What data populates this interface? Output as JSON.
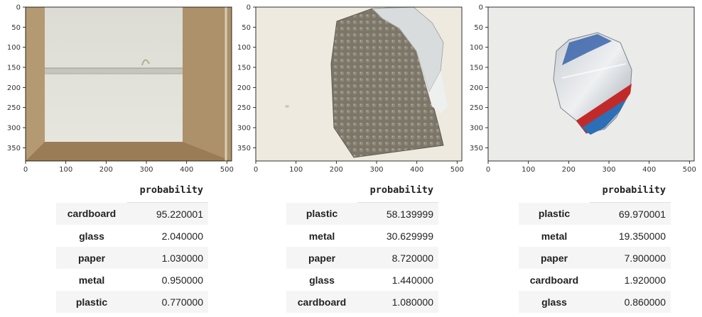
{
  "x_ticks": [
    "0",
    "100",
    "200",
    "300",
    "400",
    "500"
  ],
  "y_ticks": [
    "0",
    "50",
    "100",
    "150",
    "200",
    "250",
    "300",
    "350"
  ],
  "table_header": "probability",
  "panels": [
    {
      "image": "cardboard box interior photo",
      "rows": [
        {
          "label": "cardboard",
          "value": "95.220001"
        },
        {
          "label": "glass",
          "value": "2.040000"
        },
        {
          "label": "paper",
          "value": "1.030000"
        },
        {
          "label": "metal",
          "value": "0.950000"
        },
        {
          "label": "plastic",
          "value": "0.770000"
        }
      ]
    },
    {
      "image": "crumpled metallic bubble mailer photo",
      "rows": [
        {
          "label": "plastic",
          "value": "58.139999"
        },
        {
          "label": "metal",
          "value": "30.629999"
        },
        {
          "label": "paper",
          "value": "8.720000"
        },
        {
          "label": "glass",
          "value": "1.440000"
        },
        {
          "label": "cardboard",
          "value": "1.080000"
        }
      ]
    },
    {
      "image": "crushed aluminum can photo",
      "rows": [
        {
          "label": "plastic",
          "value": "69.970001"
        },
        {
          "label": "metal",
          "value": "19.350000"
        },
        {
          "label": "paper",
          "value": "7.900000"
        },
        {
          "label": "cardboard",
          "value": "1.920000"
        },
        {
          "label": "glass",
          "value": "0.860000"
        }
      ]
    }
  ],
  "colors": {
    "axis": "#000000",
    "row_stripe": "#f5f5f5"
  }
}
